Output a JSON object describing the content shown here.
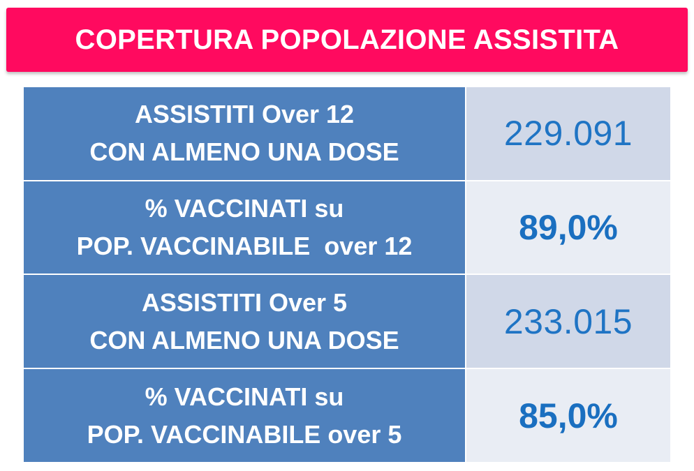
{
  "banner": {
    "title": "COPERTURA POPOLAZIONE ASSISTITA",
    "color": "#ff0a5f"
  },
  "rows": [
    {
      "label_line1": "ASSISTITI Over 12",
      "label_line2": "CON ALMENO UNA DOSE",
      "value": "229.091"
    },
    {
      "label_line1": "% VACCINATI su",
      "label_line2": "POP. VACCINABILE  over 12",
      "value": "89,0%"
    },
    {
      "label_line1": "ASSISTITI Over 5",
      "label_line2": "CON ALMENO UNA DOSE",
      "value": "233.015"
    },
    {
      "label_line1": "% VACCINATI su",
      "label_line2": "POP. VACCINABILE over 5",
      "value": "85,0%"
    }
  ],
  "colors": {
    "label_background": "#4f81bd",
    "value_background_odd": "#d0d8e8",
    "value_background_even": "#e9edf4",
    "value_text": "#1f74c4"
  }
}
